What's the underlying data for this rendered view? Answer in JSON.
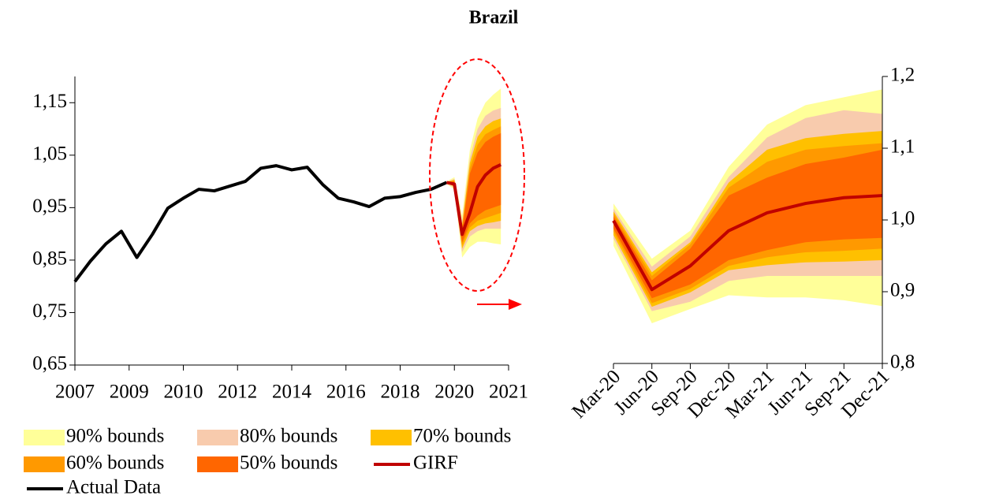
{
  "chart_data": [
    {
      "type": "fan",
      "title": "Brazil",
      "xlim": [
        2007,
        2021
      ],
      "xticks": [
        {
          "value": 2007,
          "label": "2007"
        },
        {
          "value": 2008.75,
          "label": "2009"
        },
        {
          "value": 2010.5,
          "label": "2010"
        },
        {
          "value": 2012.25,
          "label": "2012"
        },
        {
          "value": 2014,
          "label": "2014"
        },
        {
          "value": 2015.75,
          "label": "2016"
        },
        {
          "value": 2017.5,
          "label": "2018"
        },
        {
          "value": 2019.25,
          "label": "2020"
        },
        {
          "value": 2021,
          "label": "2021"
        }
      ],
      "ylim": [
        0.65,
        1.2
      ],
      "yticks": [
        {
          "value": 0.65,
          "label": "0,65"
        },
        {
          "value": 0.75,
          "label": "0,75"
        },
        {
          "value": 0.85,
          "label": "0,85"
        },
        {
          "value": 0.95,
          "label": "0,95"
        },
        {
          "value": 1.05,
          "label": "1,05"
        },
        {
          "value": 1.15,
          "label": "1,15"
        }
      ],
      "y_axis_side": "left",
      "fan_x": [
        2019,
        2019.25,
        2019.5,
        2019.75,
        2020,
        2020.25,
        2020.5,
        2020.75
      ],
      "bands": [
        {
          "name": "90% bounds",
          "color": "#ffff99",
          "upper": [
            1.0,
            1.008,
            0.935,
            1.06,
            1.12,
            1.15,
            1.165,
            1.177
          ],
          "lower": [
            0.995,
            0.985,
            0.855,
            0.875,
            0.885,
            0.885,
            0.882,
            0.88
          ]
        },
        {
          "name": "80% bounds",
          "color": "#f8cbad",
          "upper": [
            0.999,
            1.005,
            0.925,
            1.045,
            1.1,
            1.125,
            1.135,
            1.14
          ],
          "lower": [
            0.996,
            0.988,
            0.865,
            0.895,
            0.905,
            0.91,
            0.91,
            0.91
          ]
        },
        {
          "name": "70% bounds",
          "color": "#ffc000",
          "upper": [
            0.999,
            1.003,
            0.918,
            1.035,
            1.085,
            1.105,
            1.115,
            1.12
          ],
          "lower": [
            0.997,
            0.99,
            0.872,
            0.905,
            0.915,
            0.92,
            0.922,
            0.925
          ]
        },
        {
          "name": "60% bounds",
          "color": "#ff9900",
          "upper": [
            0.999,
            1.001,
            0.912,
            1.025,
            1.07,
            1.09,
            1.098,
            1.105
          ],
          "lower": [
            0.997,
            0.991,
            0.878,
            0.912,
            0.925,
            0.93,
            0.935,
            0.94
          ]
        },
        {
          "name": "50% bounds",
          "color": "#ff6600",
          "upper": [
            0.998,
            1.0,
            0.907,
            1.015,
            1.055,
            1.075,
            1.085,
            1.092
          ],
          "lower": [
            0.998,
            0.992,
            0.884,
            0.92,
            0.935,
            0.945,
            0.95,
            0.955
          ]
        }
      ],
      "series": [
        {
          "name": "Actual Data",
          "color": "#000000",
          "x": [
            2007,
            2007.5,
            2008,
            2008.5,
            2009,
            2009.5,
            2010,
            2010.5,
            2011,
            2011.5,
            2012,
            2012.5,
            2013,
            2013.5,
            2014,
            2014.5,
            2015,
            2015.5,
            2016,
            2016.5,
            2017,
            2017.5,
            2018,
            2018.5,
            2019
          ],
          "values": [
            0.809,
            0.848,
            0.881,
            0.905,
            0.855,
            0.899,
            0.949,
            0.968,
            0.985,
            0.982,
            0.991,
            1.0,
            1.025,
            1.03,
            1.022,
            1.027,
            0.994,
            0.968,
            0.961,
            0.952,
            0.968,
            0.971,
            0.979,
            0.985,
            0.998
          ]
        },
        {
          "name": "GIRF",
          "color": "#c00000",
          "x": [
            2019,
            2019.25,
            2019.5,
            2019.75,
            2020,
            2020.25,
            2020.5,
            2020.75
          ],
          "values": [
            0.998,
            0.995,
            0.899,
            0.94,
            0.99,
            1.012,
            1.025,
            1.032
          ]
        }
      ]
    },
    {
      "type": "fan",
      "categories": [
        "Mar-20",
        "Jun-20",
        "Sep-20",
        "Dec-20",
        "Mar-21",
        "Jun-21",
        "Sep-21",
        "Dec-21"
      ],
      "ylim": [
        0.8,
        1.2
      ],
      "yticks": [
        {
          "value": 0.8,
          "label": "0,8"
        },
        {
          "value": 0.9,
          "label": "0,9"
        },
        {
          "value": 1.0,
          "label": "1,0"
        },
        {
          "value": 1.1,
          "label": "1,1"
        },
        {
          "value": 1.2,
          "label": "1,2"
        }
      ],
      "y_axis_side": "right",
      "bands": [
        {
          "color": "#ffff99",
          "upper": [
            1.023,
            0.946,
            0.985,
            1.074,
            1.133,
            1.16,
            1.171,
            1.182
          ],
          "lower": [
            0.964,
            0.856,
            0.876,
            0.895,
            0.892,
            0.892,
            0.888,
            0.88
          ]
        },
        {
          "color": "#f8cbad",
          "upper": [
            1.016,
            0.935,
            0.977,
            1.06,
            1.115,
            1.142,
            1.153,
            1.148
          ],
          "lower": [
            0.974,
            0.873,
            0.886,
            0.915,
            0.922,
            0.922,
            0.922,
            0.922
          ]
        },
        {
          "color": "#ffc000",
          "upper": [
            1.012,
            0.927,
            0.969,
            1.052,
            1.098,
            1.114,
            1.12,
            1.124
          ],
          "lower": [
            0.979,
            0.879,
            0.899,
            0.93,
            0.937,
            0.941,
            0.942,
            0.944
          ]
        },
        {
          "color": "#ff9900",
          "upper": [
            1.009,
            0.922,
            0.966,
            1.045,
            1.081,
            1.098,
            1.103,
            1.107
          ],
          "lower": [
            0.984,
            0.884,
            0.904,
            0.936,
            0.948,
            0.955,
            0.957,
            0.96
          ]
        },
        {
          "color": "#ff6600",
          "upper": [
            1.005,
            0.916,
            0.96,
            1.034,
            1.059,
            1.078,
            1.087,
            1.098
          ],
          "lower": [
            0.988,
            0.891,
            0.91,
            0.944,
            0.958,
            0.969,
            0.973,
            0.975
          ]
        }
      ],
      "series": [
        {
          "color": "#c00000",
          "values": [
            0.999,
            0.903,
            0.936,
            0.985,
            1.01,
            1.023,
            1.031,
            1.034
          ]
        }
      ]
    }
  ]
}
